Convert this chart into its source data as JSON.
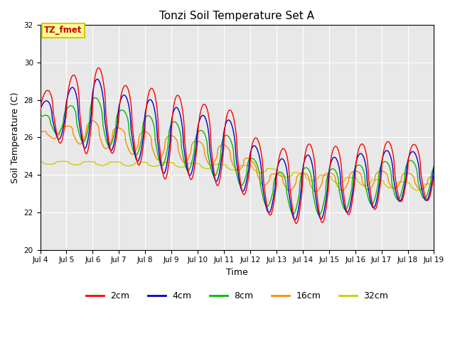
{
  "title": "Tonzi Soil Temperature Set A",
  "xlabel": "Time",
  "ylabel": "Soil Temperature (C)",
  "ylim": [
    20,
    32
  ],
  "xlim": [
    0,
    15
  ],
  "fig_bg_color": "#ffffff",
  "plot_bg_color": "#e8e8e8",
  "annotation_text": "TZ_fmet",
  "annotation_bg": "#ffff99",
  "annotation_border": "#cccc00",
  "colors": {
    "2cm": "#ff0000",
    "4cm": "#0000cc",
    "8cm": "#00bb00",
    "16cm": "#ff8800",
    "32cm": "#cccc00"
  },
  "legend_labels": [
    "2cm",
    "4cm",
    "8cm",
    "16cm",
    "32cm"
  ],
  "xtick_labels": [
    "Jul 4",
    "Jul 5",
    "Jul 6",
    "Jul 7",
    "Jul 8",
    "Jul 9",
    "Jul 10",
    "Jul 11",
    "Jul 12",
    "Jul 13",
    "Jul 14",
    "Jul 15",
    "Jul 16",
    "Jul 17",
    "Jul 18",
    "Jul 19"
  ],
  "xtick_positions": [
    0,
    1,
    2,
    3,
    4,
    5,
    6,
    7,
    8,
    9,
    10,
    11,
    12,
    13,
    14,
    15
  ]
}
